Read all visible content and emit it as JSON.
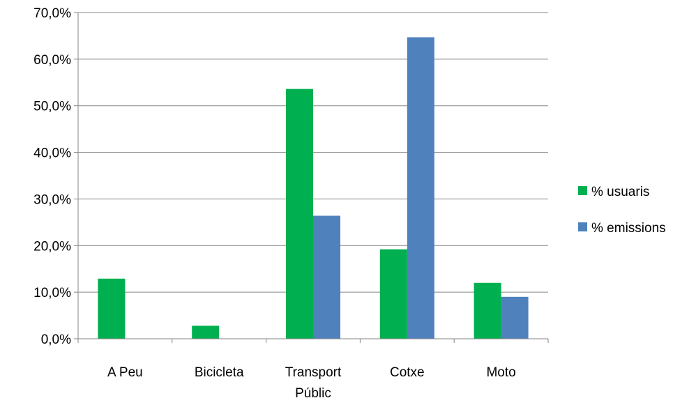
{
  "chart_data": {
    "type": "bar",
    "categories": [
      [
        "A Peu"
      ],
      [
        "Bicicleta"
      ],
      [
        "Transport",
        "Públic"
      ],
      [
        "Cotxe"
      ],
      [
        "Moto"
      ]
    ],
    "series": [
      {
        "name": "% usuaris",
        "color": "#00b050",
        "values": [
          12.9,
          2.8,
          53.6,
          19.2,
          12.0
        ]
      },
      {
        "name": "% emissions",
        "color": "#4f81bd",
        "values": [
          0.0,
          0.0,
          26.4,
          64.7,
          9.0
        ]
      }
    ],
    "ylim": [
      0,
      70
    ],
    "yticks": [
      "0,0%",
      "10,0%",
      "20,0%",
      "30,0%",
      "40,0%",
      "50,0%",
      "60,0%",
      "70,0%"
    ],
    "ytick_values": [
      0,
      10,
      20,
      30,
      40,
      50,
      60,
      70
    ],
    "grid": true,
    "legend_position": "right",
    "title": "",
    "xlabel": "",
    "ylabel": ""
  }
}
